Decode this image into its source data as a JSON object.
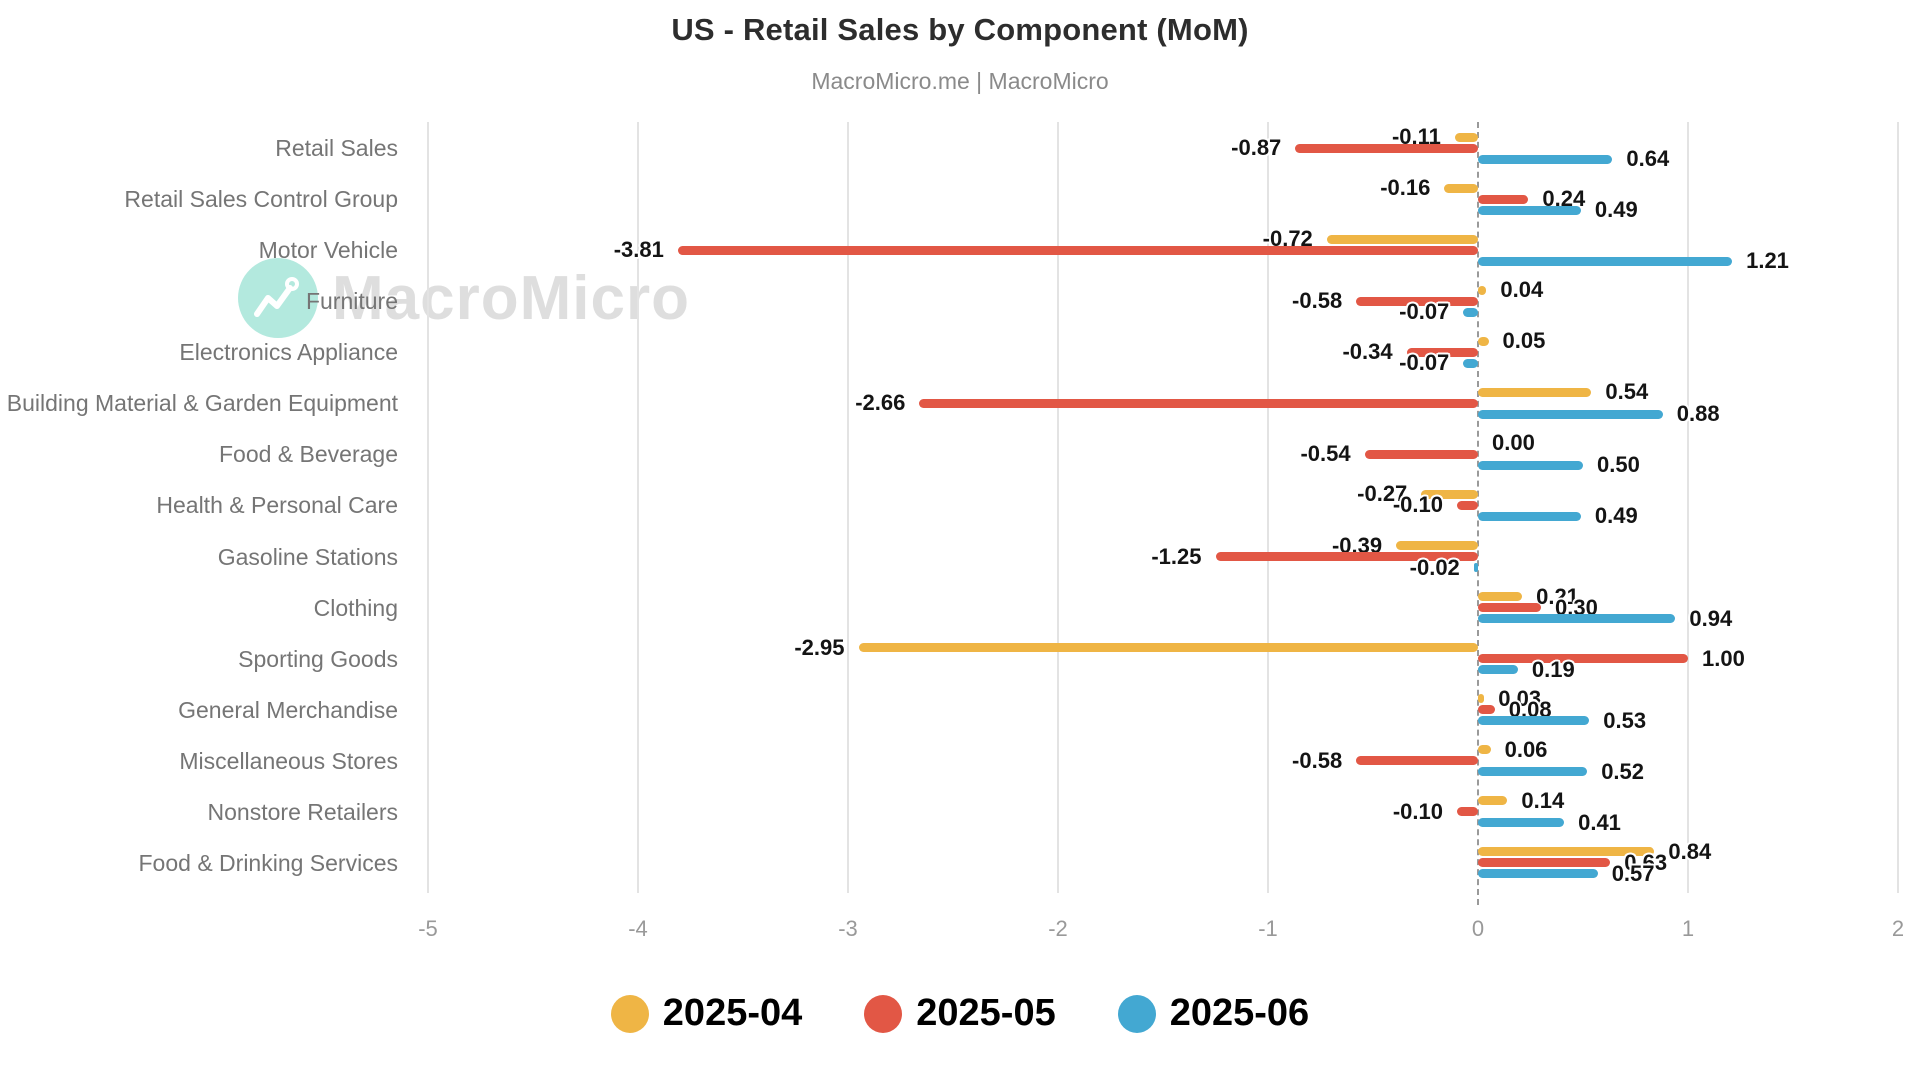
{
  "title": "US - Retail Sales by Component (MoM)",
  "subtitle": "MacroMicro.me | MacroMicro",
  "watermark": {
    "text": "MacroMicro"
  },
  "colors": {
    "series_2025_04": "#EFB545",
    "series_2025_05": "#E25745",
    "series_2025_06": "#43A8D2",
    "gridline": "#e3e3e3",
    "zero_line": "#9a9a9a",
    "category_text": "#757575",
    "tick_text": "#999999",
    "value_text": "#141414",
    "watermark_circle": "#b3e9de",
    "watermark_text": "#dedede"
  },
  "chart_data": {
    "type": "bar",
    "orientation": "horizontal",
    "title": "US - Retail Sales by Component (MoM)",
    "subtitle": "MacroMicro.me | MacroMicro",
    "xlabel": "",
    "ylabel": "",
    "xlim": [
      -5,
      2
    ],
    "xticks": [
      -5,
      -4,
      -3,
      -2,
      -1,
      0,
      1,
      2
    ],
    "grid": true,
    "zero_line_style": "dashed",
    "legend_position": "bottom",
    "value_labels_decimals": 2,
    "categories": [
      "Retail Sales",
      "Retail Sales Control Group",
      "Motor Vehicle",
      "Furniture",
      "Electronics Appliance",
      "Building Material & Garden Equipment",
      "Food & Beverage",
      "Health & Personal Care",
      "Gasoline Stations",
      "Clothing",
      "Sporting Goods",
      "General Merchandise",
      "Miscellaneous Stores",
      "Nonstore Retailers",
      "Food & Drinking Services"
    ],
    "series": [
      {
        "name": "2025-04",
        "color": "#EFB545",
        "values": [
          -0.11,
          -0.16,
          -0.72,
          0.04,
          0.05,
          0.54,
          0.0,
          -0.27,
          -0.39,
          0.21,
          -2.95,
          0.03,
          0.06,
          0.14,
          0.84
        ]
      },
      {
        "name": "2025-05",
        "color": "#E25745",
        "values": [
          -0.87,
          0.24,
          -3.81,
          -0.58,
          -0.34,
          -2.66,
          -0.54,
          -0.1,
          -1.25,
          0.3,
          1.0,
          0.08,
          -0.58,
          -0.1,
          0.63
        ]
      },
      {
        "name": "2025-06",
        "color": "#43A8D2",
        "values": [
          0.64,
          0.49,
          1.21,
          -0.07,
          -0.07,
          0.88,
          0.5,
          0.49,
          -0.02,
          0.94,
          0.19,
          0.53,
          0.52,
          0.41,
          0.57
        ]
      }
    ]
  }
}
